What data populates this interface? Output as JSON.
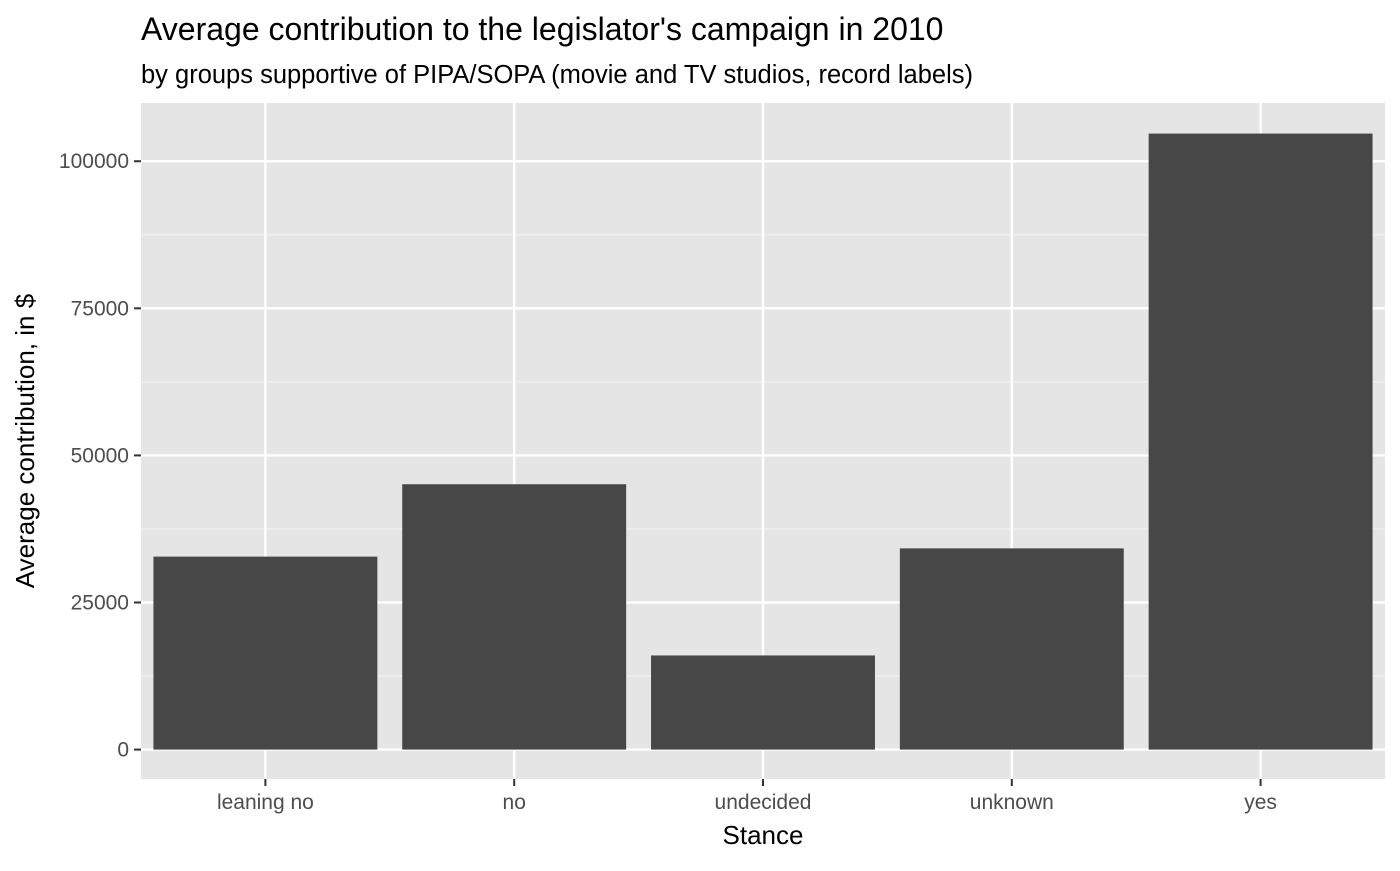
{
  "chart_data": {
    "type": "bar",
    "title": "Average contribution to the legislator's campaign in 2010",
    "subtitle": "by groups supportive of PIPA/SOPA (movie and TV studios, record labels)",
    "xlabel": "Stance",
    "ylabel": "Average contribution, in $",
    "categories": [
      "leaning no",
      "no",
      "undecided",
      "unknown",
      "yes"
    ],
    "values": [
      32800,
      45100,
      16000,
      34200,
      104700
    ],
    "ylim": [
      -5000,
      109900
    ],
    "yticks": [
      0,
      25000,
      50000,
      75000,
      100000
    ],
    "ytick_labels": [
      "0",
      "25000",
      "50000",
      "75000",
      "100000"
    ],
    "grid": true,
    "legend": "none",
    "colors": {
      "bar": "#474747",
      "panel_background": "#e5e5e5",
      "grid_major": "#ffffff",
      "grid_minor": "#f2f2f2",
      "tick_label": "#4d4d4d",
      "axis_tick": "#333333",
      "text": "#000000"
    }
  }
}
